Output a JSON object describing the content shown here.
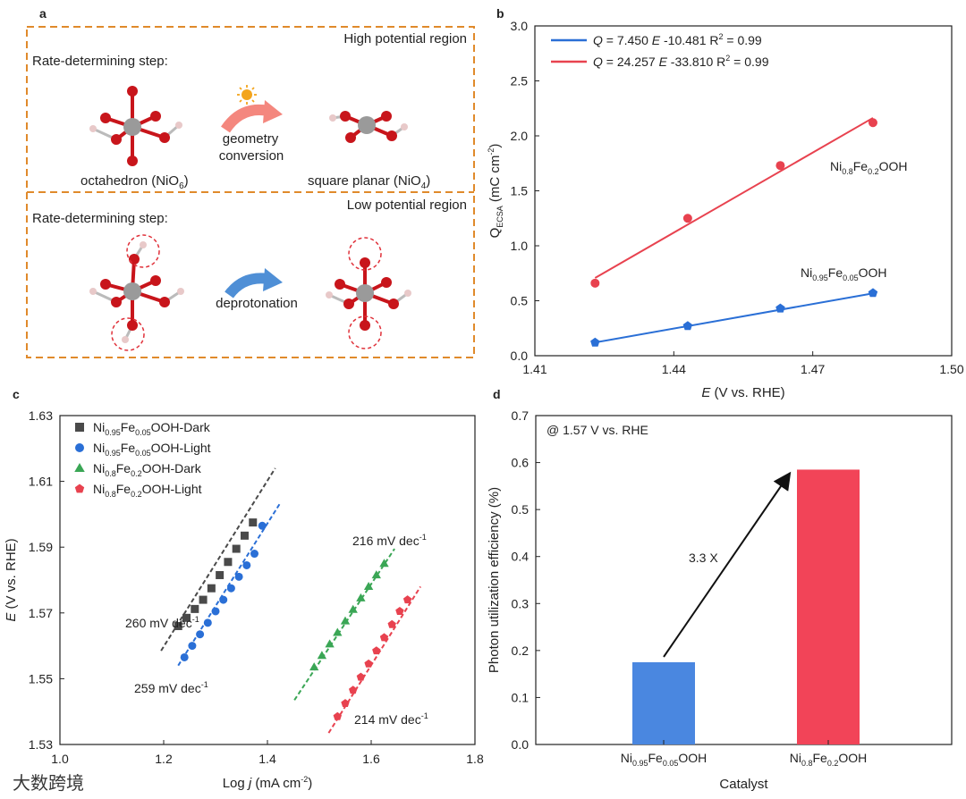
{
  "panel_labels": {
    "a": "a",
    "b": "b",
    "c": "c",
    "d": "d"
  },
  "watermark": "大数跨境",
  "panel_a": {
    "top": {
      "region": "High potential region",
      "rds": "Rate-determining step:",
      "arrow_label_1": "geometry",
      "arrow_label_2": "conversion",
      "left_name": "octahedron (NiO",
      "left_sub": "6",
      "right_name": "square planar (NiO",
      "right_sub": "4",
      "close": ")"
    },
    "bottom": {
      "region": "Low potential region",
      "rds": "Rate-determining step:",
      "arrow_label": "deprotonation"
    },
    "colors": {
      "frame": "#e08a2b",
      "oxygen": "#c8151b",
      "nickel": "#9a9a9a",
      "hydrogen": "#e8c9c9",
      "sun": "#f3a51d",
      "arrow_top": "#f4877e",
      "arrow_bottom": "#4f8fd6",
      "circle": "#e0313a"
    }
  },
  "chart_data": [
    {
      "panel": "b",
      "type": "scatter",
      "x_ticks": [
        "1.41",
        "1.44",
        "1.47",
        "1.50"
      ],
      "y_ticks": [
        "0.0",
        "0.5",
        "1.0",
        "1.5",
        "2.0",
        "2.5",
        "3.0"
      ],
      "xlim": [
        1.41,
        1.5
      ],
      "ylim": [
        0,
        3.0
      ],
      "xlabel": {
        "italic": "E",
        "rest": " (V vs. RHE)"
      },
      "ylabel": {
        "main": "Q",
        "sub": "ECSA",
        "rest": " (mC cm",
        "sup": "-2",
        "end": ")"
      },
      "legend": [
        {
          "q": "Q",
          "eq1": " = 7.450 ",
          "e": "E",
          "eq2": " -10.481 R",
          "sup": "2",
          "eq3": " = 0.99",
          "color": "#2a6fd6"
        },
        {
          "q": "Q",
          "eq1": " = 24.257 ",
          "e": "E",
          "eq2": " -33.810 R",
          "sup": "2",
          "eq3": " = 0.99",
          "color": "#e8424f"
        }
      ],
      "series": [
        {
          "name": "Ni0.8Fe0.2OOH",
          "label": {
            "a": "Ni",
            "s1": "0.8",
            "b": "Fe",
            "s2": "0.2",
            "c": "OOH"
          },
          "color": "#e8424f",
          "marker": "circle",
          "x": [
            1.423,
            1.443,
            1.463,
            1.483
          ],
          "y": [
            0.66,
            1.25,
            1.73,
            2.12
          ],
          "fit": {
            "slope": 24.257,
            "intercept": -33.81
          }
        },
        {
          "name": "Ni0.95Fe0.05OOH",
          "label": {
            "a": "Ni",
            "s1": "0.95",
            "b": "Fe",
            "s2": "0.05",
            "c": "OOH"
          },
          "color": "#2a6fd6",
          "marker": "pentagon",
          "x": [
            1.423,
            1.443,
            1.463,
            1.483
          ],
          "y": [
            0.12,
            0.27,
            0.43,
            0.57
          ],
          "fit": {
            "slope": 7.45,
            "intercept": -10.481
          }
        }
      ]
    },
    {
      "panel": "c",
      "type": "scatter",
      "x_ticks": [
        "1.0",
        "1.2",
        "1.4",
        "1.6",
        "1.8"
      ],
      "y_ticks": [
        "1.53",
        "1.55",
        "1.57",
        "1.59",
        "1.61",
        "1.63"
      ],
      "xlim": [
        1.0,
        1.8
      ],
      "ylim": [
        1.53,
        1.63
      ],
      "xlabel": {
        "pre": "Log ",
        "italic": "j",
        "rest": " (mA cm",
        "sup": "-2",
        "end": ")"
      },
      "ylabel": {
        "italic": "E",
        "rest": " (V vs. RHE)"
      },
      "series": [
        {
          "name": "Ni0.95Fe0.05OOH-Dark",
          "label": {
            "a": "Ni",
            "s1": "0.95",
            "b": "Fe",
            "s2": "0.05",
            "c": "OOH-Dark"
          },
          "color": "#4a4a4a",
          "marker": "square",
          "x": [
            1.228,
            1.244,
            1.26,
            1.276,
            1.292,
            1.308,
            1.324,
            1.34,
            1.356,
            1.372
          ],
          "y": [
            1.566,
            1.5685,
            1.5712,
            1.574,
            1.5775,
            1.5815,
            1.5855,
            1.5895,
            1.5935,
            1.5975
          ],
          "fit_x": [
            1.195,
            1.415
          ],
          "fit_y": [
            1.5585,
            1.614
          ],
          "slope_label": "260 mV dec",
          "slope_sup": "-1"
        },
        {
          "name": "Ni0.95Fe0.05OOH-Light",
          "label": {
            "a": "Ni",
            "s1": "0.95",
            "b": "Fe",
            "s2": "0.05",
            "c": "OOH-Light"
          },
          "color": "#2a6fd6",
          "marker": "circle",
          "x": [
            1.24,
            1.255,
            1.27,
            1.285,
            1.3,
            1.315,
            1.33,
            1.345,
            1.36,
            1.375,
            1.39
          ],
          "y": [
            1.5565,
            1.56,
            1.5635,
            1.567,
            1.5705,
            1.574,
            1.5775,
            1.581,
            1.5845,
            1.588,
            1.5965
          ],
          "fit_x": [
            1.228,
            1.425
          ],
          "fit_y": [
            1.554,
            1.6035
          ],
          "slope_label": "259 mV dec",
          "slope_sup": "-1"
        },
        {
          "name": "Ni0.8Fe0.2OOH-Dark",
          "label": {
            "a": "Ni",
            "s1": "0.8",
            "b": "Fe",
            "s2": "0.2",
            "c": "OOH-Dark"
          },
          "color": "#3aa655",
          "marker": "triangle",
          "x": [
            1.49,
            1.505,
            1.52,
            1.535,
            1.55,
            1.565,
            1.58,
            1.595,
            1.61,
            1.625
          ],
          "y": [
            1.5535,
            1.557,
            1.5605,
            1.564,
            1.5675,
            1.571,
            1.5745,
            1.578,
            1.5815,
            1.585
          ],
          "fit_x": [
            1.452,
            1.645
          ],
          "fit_y": [
            1.5435,
            1.5895
          ],
          "slope_label": "216 mV dec",
          "slope_sup": "-1"
        },
        {
          "name": "Ni0.8Fe0.2OOH-Light",
          "label": {
            "a": "Ni",
            "s1": "0.8",
            "b": "Fe",
            "s2": "0.2",
            "c": "OOH-Light"
          },
          "color": "#e8424f",
          "marker": "pentagon",
          "x": [
            1.535,
            1.55,
            1.565,
            1.58,
            1.595,
            1.61,
            1.625,
            1.64,
            1.655,
            1.67
          ],
          "y": [
            1.5385,
            1.5425,
            1.5465,
            1.5505,
            1.5545,
            1.5585,
            1.5625,
            1.5665,
            1.5705,
            1.574
          ],
          "fit_x": [
            1.518,
            1.695
          ],
          "fit_y": [
            1.5335,
            1.578
          ],
          "slope_label": "214 mV dec",
          "slope_sup": "-1"
        }
      ]
    },
    {
      "panel": "d",
      "type": "bar",
      "categories": [
        "Ni0.95Fe0.05OOH",
        "Ni0.8Fe0.2OOH"
      ],
      "category_labels": [
        {
          "a": "Ni",
          "s1": "0.95",
          "b": "Fe",
          "s2": "0.05",
          "c": "OOH"
        },
        {
          "a": "Ni",
          "s1": "0.8",
          "b": "Fe",
          "s2": "0.2",
          "c": "OOH"
        }
      ],
      "values": [
        0.175,
        0.585
      ],
      "colors": [
        "#4a87e0",
        "#f24458"
      ],
      "ylim": [
        0,
        0.7
      ],
      "y_ticks": [
        "0.0",
        "0.1",
        "0.2",
        "0.3",
        "0.4",
        "0.5",
        "0.6",
        "0.7"
      ],
      "xlabel": "Catalyst",
      "ylabel": "Photon utilization efficiency (%)",
      "annotation": "@ 1.57 V vs. RHE",
      "ratio_label": "3.3 X"
    }
  ]
}
